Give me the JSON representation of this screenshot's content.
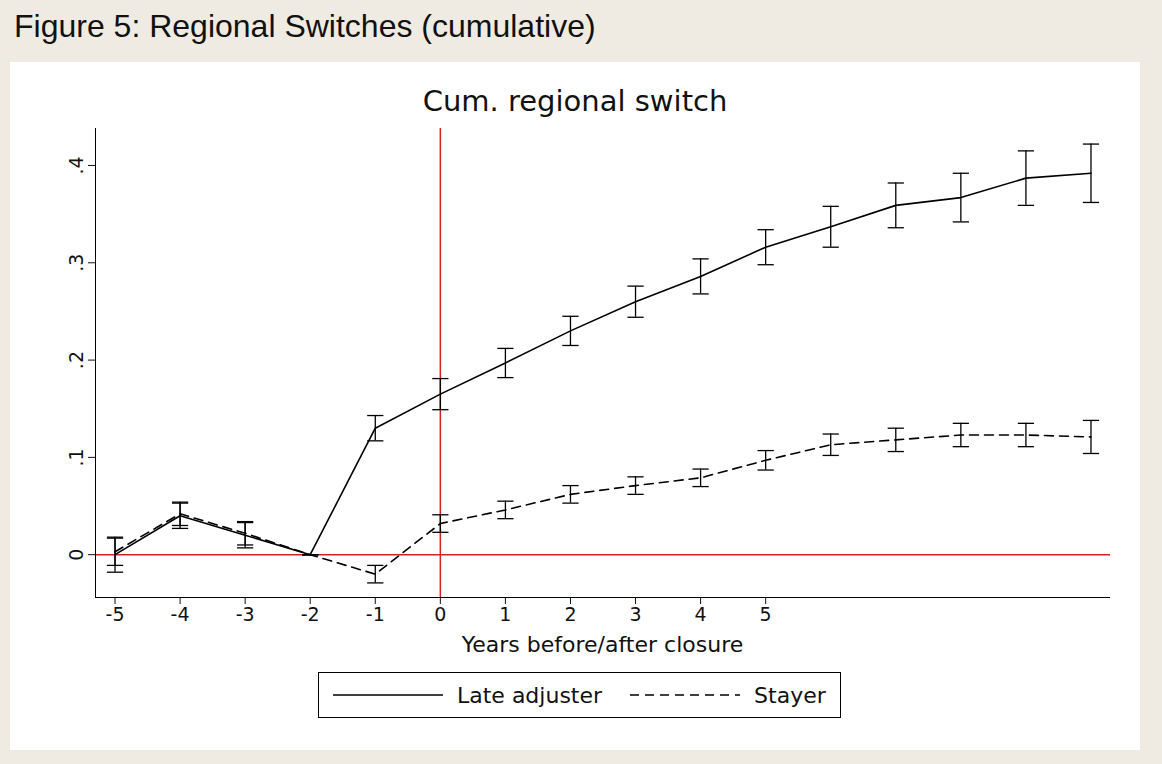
{
  "header": "Figure 5: Regional Switches (cumulative)",
  "chart_data": {
    "type": "line",
    "title": "Cum. regional switch",
    "x_label": "Years before/after closure",
    "y_label": null,
    "x": [
      -5,
      -4,
      -3,
      -2,
      -1,
      0,
      1,
      2,
      3,
      4,
      5,
      6,
      7,
      8,
      9,
      10
    ],
    "series": [
      {
        "name": "Late adjuster",
        "color": "#000000",
        "line_style": "solid",
        "values": [
          0.0,
          0.04,
          0.02,
          0.0,
          0.13,
          0.165,
          0.197,
          0.23,
          0.26,
          0.286,
          0.316,
          0.337,
          0.359,
          0.367,
          0.387,
          0.392
        ],
        "errors": [
          0.018,
          0.013,
          0.013,
          0.0,
          0.013,
          0.016,
          0.015,
          0.015,
          0.016,
          0.018,
          0.018,
          0.021,
          0.023,
          0.025,
          0.028,
          0.03
        ]
      },
      {
        "name": "Stayer",
        "color": "#000000",
        "line_style": "dashed",
        "values": [
          0.003,
          0.042,
          0.022,
          0.0,
          -0.02,
          0.032,
          0.046,
          0.062,
          0.071,
          0.079,
          0.097,
          0.113,
          0.118,
          0.123,
          0.123,
          0.121
        ],
        "errors": [
          0.014,
          0.012,
          0.012,
          0.0,
          0.009,
          0.009,
          0.009,
          0.009,
          0.009,
          0.009,
          0.01,
          0.011,
          0.012,
          0.012,
          0.012,
          0.017
        ]
      }
    ],
    "reference_lines": [
      {
        "axis": "x",
        "value": 0,
        "color": "#d62020"
      },
      {
        "axis": "y",
        "value": 0,
        "color": "#d62020"
      }
    ],
    "xlim": [
      -5.3,
      10.3
    ],
    "ylim": [
      -0.044,
      0.438
    ],
    "xticks": [
      -5,
      -4,
      -3,
      -2,
      -1,
      0,
      1,
      2,
      3,
      4,
      5
    ],
    "yticks": [
      {
        "value": 0,
        "label": "0"
      },
      {
        "value": 0.1,
        "label": ".1"
      },
      {
        "value": 0.2,
        "label": ".2"
      },
      {
        "value": 0.3,
        "label": ".3"
      },
      {
        "value": 0.4,
        "label": ".4"
      }
    ],
    "grid": false,
    "legend": "bottom"
  }
}
